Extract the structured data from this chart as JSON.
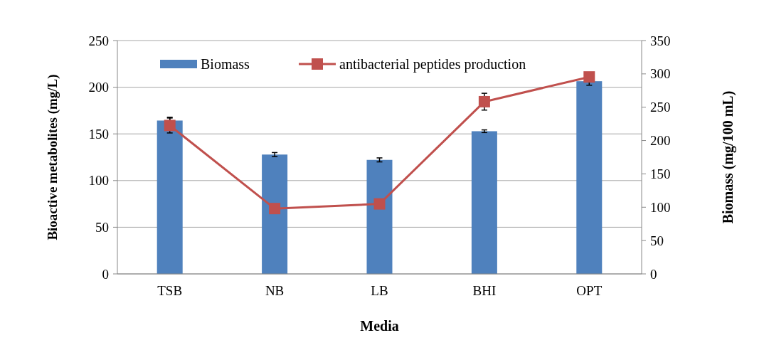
{
  "chart_data": {
    "type": "bar",
    "xlabel": "Media",
    "ylabel": "Bioactive metabolites (mg/L)",
    "y2label": "Biomass (mg/100 mL)",
    "categories": [
      "TSB",
      "NB",
      "LB",
      "BHI",
      "OPT"
    ],
    "series": [
      {
        "name": "Biomass",
        "axis": "y2",
        "color": "#4f81bd",
        "values": [
          230,
          179,
          171,
          214,
          289
        ],
        "errors": [
          5,
          3,
          3,
          2,
          6
        ]
      },
      {
        "name": "antibacterial peptides production",
        "type": "line",
        "color": "#c0504d",
        "values": [
          159,
          70,
          75,
          184.5,
          211
        ],
        "errors": [
          8,
          null,
          null,
          9,
          null
        ],
        "marker": "square"
      }
    ],
    "ylim": [
      0,
      250
    ],
    "yticks": [
      0,
      50,
      100,
      150,
      200,
      250
    ],
    "y2lim": [
      0,
      350
    ],
    "y2ticks": [
      0,
      50,
      100,
      150,
      200,
      250,
      300,
      350
    ],
    "grid": "y",
    "legend": "top"
  }
}
